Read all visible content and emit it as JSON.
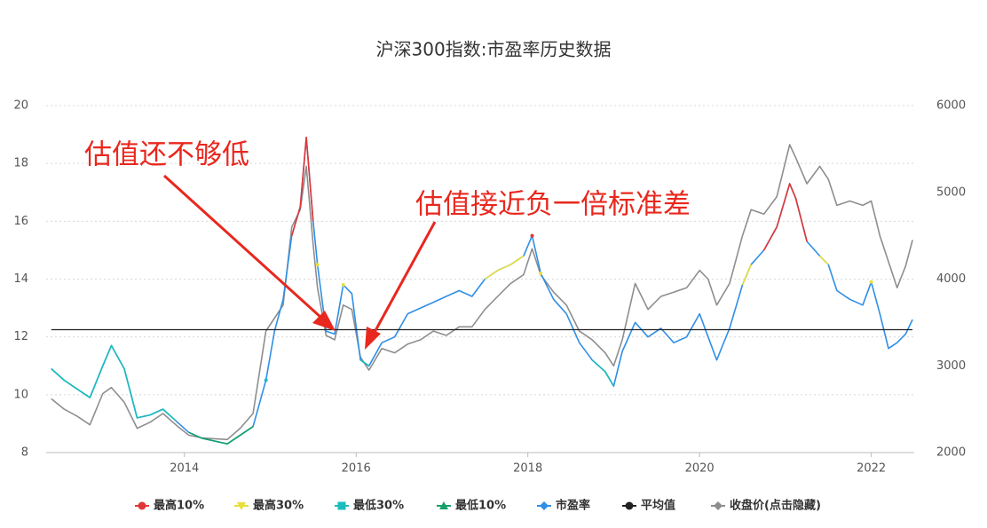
{
  "chart_data": {
    "type": "line",
    "title": "沪深300指数:市盈率历史数据",
    "x": [
      2012.45,
      2012.6,
      2012.75,
      2012.9,
      2013.05,
      2013.15,
      2013.3,
      2013.45,
      2013.6,
      2013.75,
      2013.9,
      2014.05,
      2014.2,
      2014.35,
      2014.5,
      2014.65,
      2014.8,
      2014.95,
      2015.05,
      2015.15,
      2015.25,
      2015.35,
      2015.42,
      2015.5,
      2015.55,
      2015.65,
      2015.75,
      2015.85,
      2015.95,
      2016.05,
      2016.15,
      2016.3,
      2016.45,
      2016.6,
      2016.75,
      2016.9,
      2017.05,
      2017.2,
      2017.35,
      2017.5,
      2017.65,
      2017.8,
      2017.95,
      2018.05,
      2018.15,
      2018.3,
      2018.45,
      2018.6,
      2018.75,
      2018.9,
      2019.0,
      2019.1,
      2019.25,
      2019.4,
      2019.55,
      2019.7,
      2019.85,
      2020.0,
      2020.1,
      2020.2,
      2020.35,
      2020.5,
      2020.6,
      2020.75,
      2020.9,
      2021.05,
      2021.12,
      2021.25,
      2021.4,
      2021.5,
      2021.6,
      2021.75,
      2021.9,
      2022.0,
      2022.1,
      2022.2,
      2022.3,
      2022.4,
      2022.48
    ],
    "series": [
      {
        "name": "最高10%",
        "color": "#e03636",
        "marker": "circle",
        "values": [
          null,
          null,
          null,
          null,
          null,
          null,
          null,
          null,
          null,
          null,
          null,
          null,
          null,
          null,
          null,
          null,
          null,
          null,
          null,
          null,
          15.5,
          16.5,
          18.9,
          16.0,
          null,
          null,
          null,
          null,
          null,
          null,
          null,
          null,
          null,
          null,
          null,
          null,
          null,
          null,
          null,
          null,
          null,
          null,
          null,
          15.5,
          null,
          null,
          null,
          null,
          null,
          null,
          null,
          null,
          null,
          null,
          null,
          null,
          null,
          null,
          null,
          null,
          null,
          null,
          null,
          15.0,
          15.8,
          17.3,
          16.8,
          15.3,
          null,
          null,
          null,
          null,
          null,
          null,
          null,
          null,
          null,
          null,
          null
        ]
      },
      {
        "name": "最高30%",
        "color": "#e6df3c",
        "marker": "triangle-down",
        "values": [
          null,
          null,
          null,
          null,
          null,
          null,
          null,
          null,
          null,
          null,
          null,
          null,
          null,
          null,
          null,
          null,
          null,
          null,
          null,
          null,
          null,
          null,
          null,
          null,
          14.5,
          null,
          null,
          13.8,
          null,
          null,
          null,
          null,
          null,
          null,
          null,
          null,
          null,
          null,
          null,
          14.0,
          14.3,
          14.5,
          14.8,
          null,
          14.2,
          null,
          null,
          null,
          null,
          null,
          null,
          null,
          null,
          null,
          null,
          null,
          null,
          null,
          null,
          null,
          null,
          13.8,
          14.5,
          null,
          null,
          null,
          null,
          null,
          14.8,
          14.5,
          null,
          null,
          null,
          13.9,
          null,
          null,
          null,
          null,
          null
        ]
      },
      {
        "name": "最低30%",
        "color": "#1cbcbc",
        "marker": "square",
        "values": [
          10.9,
          10.5,
          10.2,
          9.9,
          11.0,
          11.7,
          10.9,
          9.2,
          9.3,
          9.5,
          9.1,
          null,
          null,
          null,
          null,
          null,
          null,
          10.5,
          null,
          null,
          null,
          null,
          null,
          null,
          null,
          null,
          null,
          null,
          null,
          11.2,
          11.0,
          null,
          null,
          null,
          null,
          null,
          null,
          null,
          null,
          null,
          null,
          null,
          null,
          null,
          null,
          null,
          null,
          null,
          11.2,
          10.8,
          10.3,
          null,
          null,
          null,
          null,
          null,
          null,
          null,
          null,
          null,
          null,
          null,
          null,
          null,
          null,
          null,
          null,
          null,
          null,
          null,
          null,
          null,
          null,
          null,
          null,
          null,
          null,
          null,
          null
        ]
      },
      {
        "name": "最低10%",
        "color": "#17a06a",
        "marker": "triangle-up",
        "values": [
          null,
          null,
          null,
          null,
          null,
          null,
          null,
          null,
          null,
          null,
          null,
          8.7,
          8.5,
          8.4,
          8.3,
          8.6,
          8.9,
          null,
          null,
          null,
          null,
          null,
          null,
          null,
          null,
          null,
          null,
          null,
          null,
          null,
          null,
          null,
          null,
          null,
          null,
          null,
          null,
          null,
          null,
          null,
          null,
          null,
          null,
          null,
          null,
          null,
          null,
          null,
          null,
          null,
          null,
          null,
          null,
          null,
          null,
          null,
          null,
          null,
          null,
          null,
          null,
          null,
          null,
          null,
          null,
          null,
          null,
          null,
          null,
          null,
          null,
          null,
          null,
          null,
          null,
          null,
          null,
          null,
          null
        ]
      },
      {
        "name": "市盈率",
        "color": "#2f8fe6",
        "marker": "diamond",
        "values": [
          10.9,
          10.5,
          10.2,
          9.9,
          11.0,
          11.7,
          10.9,
          9.2,
          9.3,
          9.5,
          9.1,
          8.7,
          8.5,
          8.4,
          8.3,
          8.6,
          8.9,
          10.5,
          12.2,
          13.3,
          15.5,
          16.5,
          18.9,
          16.0,
          14.5,
          12.2,
          12.1,
          13.8,
          13.5,
          11.2,
          11.0,
          11.8,
          12.0,
          12.8,
          13.0,
          13.2,
          13.4,
          13.6,
          13.4,
          14.0,
          14.3,
          14.5,
          14.8,
          15.5,
          14.2,
          13.3,
          12.8,
          11.8,
          11.2,
          10.8,
          10.3,
          11.5,
          12.5,
          12.0,
          12.3,
          11.8,
          12.0,
          12.8,
          12.0,
          11.2,
          12.3,
          13.8,
          14.5,
          15.0,
          15.8,
          17.3,
          16.8,
          15.3,
          14.8,
          14.5,
          13.6,
          13.3,
          13.1,
          13.9,
          12.8,
          11.6,
          11.8,
          12.1,
          12.6
        ]
      },
      {
        "name": "平均值",
        "color": "#222222",
        "marker": "circle",
        "value": 12.25
      },
      {
        "name": "收盘价(点击隐藏)",
        "color": "#8e8e8e",
        "marker": "diamond",
        "axis": "y2",
        "values": [
          2620,
          2500,
          2420,
          2320,
          2680,
          2750,
          2580,
          2280,
          2350,
          2450,
          2320,
          2200,
          2170,
          2160,
          2150,
          2280,
          2450,
          3400,
          3550,
          3700,
          4600,
          4800,
          5300,
          4400,
          3900,
          3350,
          3300,
          3700,
          3650,
          3100,
          2950,
          3200,
          3150,
          3250,
          3300,
          3400,
          3350,
          3450,
          3450,
          3650,
          3800,
          3950,
          4050,
          4350,
          4050,
          3850,
          3700,
          3400,
          3300,
          3150,
          3000,
          3300,
          3950,
          3650,
          3800,
          3850,
          3900,
          4100,
          4000,
          3700,
          3950,
          4500,
          4800,
          4750,
          4950,
          5550,
          5400,
          5100,
          5300,
          5150,
          4850,
          4900,
          4850,
          4900,
          4500,
          4200,
          3900,
          4150,
          4450
        ]
      }
    ],
    "xlim": [
      2012.39,
      2022.5
    ],
    "xticks": [
      2014,
      2016,
      2018,
      2020,
      2022
    ],
    "ylim": [
      8,
      20
    ],
    "yticks": [
      8,
      10,
      12,
      14,
      16,
      18,
      20
    ],
    "y2lim": [
      2000,
      6000
    ],
    "y2ticks": [
      2000,
      3000,
      4000,
      5000,
      6000
    ],
    "grid": true,
    "legend": "bottom",
    "annotations": [
      {
        "text": "估值还不够低"
      },
      {
        "text": "估值接近负一倍标准差"
      }
    ]
  }
}
